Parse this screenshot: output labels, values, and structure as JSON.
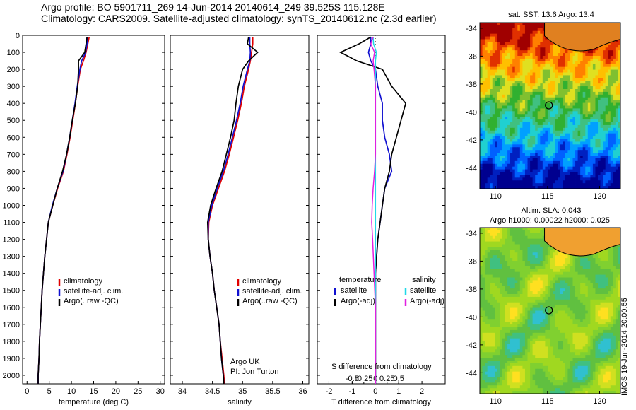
{
  "header": {
    "line1": "Argo profile: BO 5901711_269 14-Jun-2014 20140614_249 39.525S 115.128E",
    "line2": "Climatology: CARS2009. Satellite-adjusted climatology: synTS_20140612.nc (2.3d earlier)"
  },
  "colors": {
    "climatology": "#e00000",
    "satellite": "#1010d0",
    "argo": "#000000",
    "sal_sat": "#20d8e8",
    "sal_argo": "#e020e0"
  },
  "chart_data": [
    {
      "type": "line",
      "xlabel": "temperature (deg C)",
      "ylim": [
        0,
        2050
      ],
      "xlim": [
        -1,
        31
      ],
      "yticks": [
        0,
        100,
        200,
        300,
        400,
        500,
        600,
        700,
        800,
        900,
        1000,
        1100,
        1200,
        1300,
        1400,
        1500,
        1600,
        1700,
        1800,
        1900,
        2000
      ],
      "xticks": [
        0,
        5,
        10,
        15,
        20,
        25,
        30
      ],
      "legend": [
        "climatology",
        "satellite-adj. clim.",
        "Argo(..raw -QC)"
      ],
      "depth": [
        10,
        50,
        100,
        150,
        200,
        300,
        400,
        500,
        600,
        700,
        800,
        900,
        1000,
        1100,
        1200,
        1300,
        1400,
        1500,
        1600,
        1700,
        1800,
        1900,
        2000,
        2050
      ],
      "series": [
        {
          "name": "climatology",
          "values": [
            14,
            13.7,
            13.3,
            12.7,
            12,
            11.4,
            10.9,
            10.3,
            9.7,
            9.0,
            8.2,
            6.9,
            5.8,
            4.8,
            4.4,
            4.0,
            3.7,
            3.4,
            3.2,
            3.0,
            2.8,
            2.7,
            2.5,
            2.5
          ]
        },
        {
          "name": "satellite-adj. clim.",
          "values": [
            13.7,
            13.5,
            13.2,
            12.3,
            11.9,
            11.3,
            10.8,
            10.2,
            9.6,
            8.9,
            8.1,
            6.8,
            5.7,
            4.8,
            4.4,
            4.0,
            3.7,
            3.4,
            3.2,
            3.0,
            2.8,
            2.7,
            2.5,
            2.5
          ]
        },
        {
          "name": "Argo(..raw -QC)",
          "values": [
            13.5,
            13.3,
            13.0,
            11.6,
            11.6,
            11.4,
            10.9,
            10.2,
            9.6,
            8.9,
            8.0,
            6.8,
            5.8,
            4.8,
            4.4,
            4.0,
            3.7,
            3.4,
            3.2,
            3.0,
            2.8,
            2.7,
            2.5,
            2.5
          ]
        }
      ]
    },
    {
      "type": "line",
      "xlabel": "salinity",
      "xlim": [
        33.8,
        36.1
      ],
      "xticks": [
        34,
        34.5,
        35,
        35.5,
        36
      ],
      "xticklabels": [
        "34",
        "34.5",
        "35",
        "35.5",
        "36"
      ],
      "legend": [
        "climatology",
        "satellite-adj. clim.",
        "Argo(..raw -QC)"
      ],
      "depth": [
        10,
        50,
        100,
        150,
        200,
        300,
        400,
        500,
        600,
        700,
        800,
        900,
        1000,
        1100,
        1200,
        1300,
        1400,
        1500,
        1600,
        1700,
        1800,
        1900,
        2000,
        2050
      ],
      "series": [
        {
          "name": "climatology",
          "values": [
            35.17,
            35.17,
            35.15,
            35.13,
            35.1,
            35.03,
            34.98,
            34.92,
            34.85,
            34.78,
            34.7,
            34.6,
            34.5,
            34.44,
            34.43,
            34.46,
            34.5,
            34.53,
            34.57,
            34.61,
            34.63,
            34.66,
            34.69,
            34.7
          ]
        },
        {
          "name": "satellite-adj. clim.",
          "values": [
            35.12,
            35.12,
            35.13,
            35.12,
            35.08,
            35.01,
            34.96,
            34.9,
            34.83,
            34.76,
            34.68,
            34.58,
            34.49,
            34.43,
            34.43,
            34.46,
            34.5,
            34.53,
            34.57,
            34.61,
            34.63,
            34.65,
            34.68,
            34.69
          ]
        },
        {
          "name": "Argo(..raw -QC)",
          "values": [
            35.1,
            35.08,
            35.25,
            35.1,
            35.0,
            34.93,
            34.89,
            34.86,
            34.8,
            34.73,
            34.66,
            34.56,
            34.47,
            34.42,
            34.43,
            34.46,
            34.5,
            34.53,
            34.57,
            34.61,
            34.63,
            34.65,
            34.68,
            34.69
          ]
        }
      ],
      "notes": [
        "Argo UK",
        "PI: Jon Turton"
      ]
    },
    {
      "type": "line",
      "xlabel": "T difference from climatology",
      "xlabel_top": "S difference from climatology",
      "xlim": [
        -2.5,
        3
      ],
      "xticks": [
        -2,
        -1,
        0,
        1,
        2
      ],
      "sticks": [
        -0.5,
        -0.25,
        0,
        0.25,
        0.5
      ],
      "sticklabels": [
        "-0.5",
        "-0.25",
        "0",
        "0.25",
        "0.5"
      ],
      "legend_temperature": {
        "title": "temperature",
        "items": [
          "satellite",
          "Argo(-adj)"
        ]
      },
      "legend_salinity": {
        "title": "salinity",
        "items": [
          "satellite",
          "Argo(-adj)"
        ]
      },
      "depth": [
        10,
        50,
        100,
        150,
        200,
        300,
        400,
        500,
        600,
        700,
        800,
        900,
        1000,
        1100,
        1200,
        1400,
        1600,
        1800,
        2000,
        2050
      ],
      "series": [
        {
          "name": "T satellite",
          "values": [
            -0.2,
            -0.2,
            -0.3,
            -0.2,
            0.0,
            0.1,
            0.3,
            0.3,
            0.4,
            0.6,
            0.7,
            0.4,
            0.3,
            0.2,
            0.1,
            0.0,
            0.0,
            0.0,
            0.0,
            0.0
          ]
        },
        {
          "name": "T Argo(-adj)",
          "values": [
            -0.2,
            -0.7,
            -1.5,
            -0.8,
            0.3,
            0.7,
            1.3,
            1.1,
            0.9,
            0.7,
            0.6,
            0.4,
            0.3,
            0.2,
            0.1,
            0.0,
            0.0,
            0.0,
            0.0,
            0.0
          ]
        },
        {
          "name": "S satellite",
          "values": [
            -0.05,
            -0.04,
            0.02,
            0.0,
            0.0,
            0.0,
            0.0,
            0.0,
            0.0,
            0.0,
            0.0,
            0.0,
            0.0,
            0.0,
            0.0,
            0.0,
            0.0,
            0.0,
            0.0,
            0.0
          ]
        },
        {
          "name": "S Argo(-adj)",
          "values": [
            -0.05,
            -0.1,
            -0.02,
            -0.05,
            -0.03,
            0.0,
            0.0,
            0.0,
            0.0,
            0.0,
            -0.02,
            -0.05,
            -0.07,
            -0.08,
            -0.06,
            -0.03,
            0.0,
            0.0,
            0.0,
            0.0
          ]
        }
      ]
    }
  ],
  "maps": [
    {
      "title": "sat. SST: 13.6 Argo: 13.4",
      "yticks": [
        "-34",
        "-36",
        "-38",
        "-40",
        "-42",
        "-44"
      ],
      "xticks": [
        "110",
        "115",
        "120"
      ]
    },
    {
      "title1": "Altim. SLA: 0.043",
      "title2": "Argo h1000: 0.00022 h2000: 0.025",
      "yticks": [
        "-34",
        "-36",
        "-38",
        "-40",
        "-42",
        "-44"
      ],
      "xticks": [
        "110",
        "115",
        "120"
      ]
    }
  ],
  "credit": "IMOS 19-Jun-2014 20:00:55"
}
